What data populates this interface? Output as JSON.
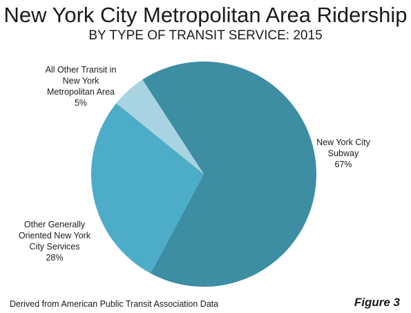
{
  "title": "New York City Metropolitan Area Ridership",
  "subtitle": "BY TYPE OF TRANSIT SERVICE: 2015",
  "source": "Derived from American Public Transit Association Data",
  "figure_label": "Figure 3",
  "chart_data": {
    "type": "pie",
    "title": "New York City Metropolitan Area Ridership",
    "subtitle": "BY TYPE OF TRANSIT SERVICE: 2015",
    "slices": [
      {
        "label_lines": [
          "New York City",
          "Subway",
          "67%"
        ],
        "value": 67,
        "color": "#3d8da3"
      },
      {
        "label_lines": [
          "Other Generally",
          "Oriented New York",
          "City Services",
          "28%"
        ],
        "value": 28,
        "color": "#4dadc8"
      },
      {
        "label_lines": [
          "All Other Transit in",
          "New York",
          "Metropolitan Area",
          "5%"
        ],
        "value": 5,
        "color": "#a8d3e0"
      }
    ]
  }
}
